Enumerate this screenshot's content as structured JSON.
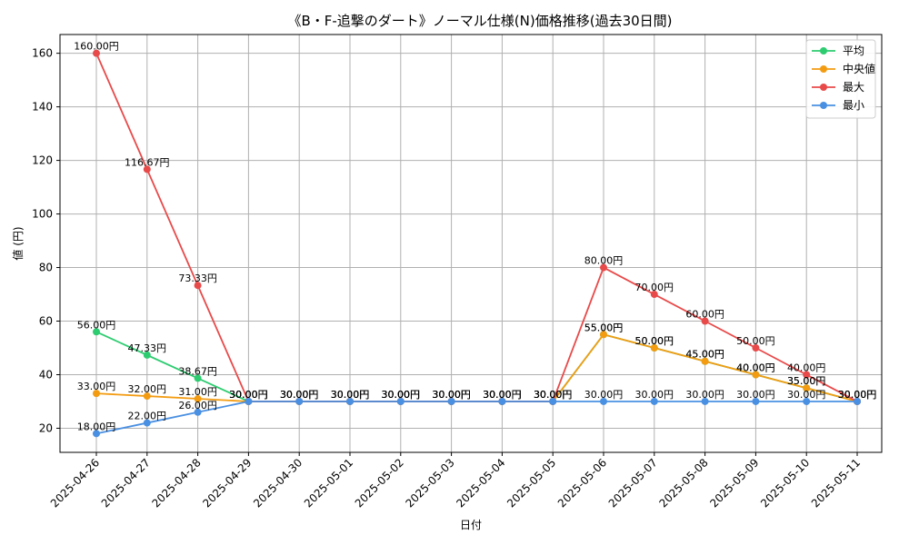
{
  "chart_data": {
    "type": "line",
    "title": "《B・F-追撃のダート》ノーマル仕様(N)価格推移(過去30日間)",
    "xlabel": "日付",
    "ylabel": "値 (円)",
    "ylim": [
      11,
      167
    ],
    "yticks": [
      20,
      40,
      60,
      80,
      100,
      120,
      140,
      160
    ],
    "grid": true,
    "legend_position": "top-right",
    "categories": [
      "2025-04-26",
      "2025-04-27",
      "2025-04-28",
      "2025-04-29",
      "2025-04-30",
      "2025-05-01",
      "2025-05-02",
      "2025-05-03",
      "2025-05-04",
      "2025-05-05",
      "2025-05-06",
      "2025-05-07",
      "2025-05-08",
      "2025-05-09",
      "2025-05-10",
      "2025-05-11"
    ],
    "series": [
      {
        "name": "平均",
        "color": "#2ecc71",
        "values": [
          56,
          47.33,
          38.67,
          30,
          30,
          30,
          30,
          30,
          30,
          30,
          55,
          50,
          45,
          40,
          35,
          30
        ],
        "labels": [
          "56.00円",
          "47.33円",
          "38.67円",
          "30.00円",
          "30.00円",
          "30.00円",
          "30.00円",
          "30.00円",
          "30.00円",
          "30.00円",
          "55.00円",
          "50.00円",
          "45.00円",
          "40.00円",
          "35.00円",
          "30.00円"
        ]
      },
      {
        "name": "中央値",
        "color": "#f39c12",
        "values": [
          33,
          32,
          31,
          30,
          30,
          30,
          30,
          30,
          30,
          30,
          55,
          50,
          45,
          40,
          35,
          30
        ],
        "labels": [
          "33.00円",
          "32.00円",
          "31.00円",
          "30.00円",
          "30.00円",
          "30.00円",
          "30.00円",
          "30.00円",
          "30.00円",
          "30.00円",
          "55.00円",
          "50.00円",
          "45.00円",
          "40.00円",
          "35.00円",
          "30.00円"
        ]
      },
      {
        "name": "最大",
        "color": "#e84a4a",
        "values": [
          160,
          116.67,
          73.33,
          30,
          30,
          30,
          30,
          30,
          30,
          30,
          80,
          70,
          60,
          50,
          40,
          30
        ],
        "labels": [
          "160.00円",
          "116.67円",
          "73.33円",
          "30.00円",
          "30.00円",
          "30.00円",
          "30.00円",
          "30.00円",
          "30.00円",
          "30.00円",
          "80.00円",
          "70.00円",
          "60.00円",
          "50.00円",
          "40.00円",
          "30.00円"
        ]
      },
      {
        "name": "最小",
        "color": "#4a90e2",
        "values": [
          18,
          22,
          26,
          30,
          30,
          30,
          30,
          30,
          30,
          30,
          30,
          30,
          30,
          30,
          30,
          30
        ],
        "labels": [
          "18.00円",
          "22.00円",
          "26.00円",
          "30.00円",
          "30.00円",
          "30.00円",
          "30.00円",
          "30.00円",
          "30.00円",
          "30.00円",
          "30.00円",
          "30.00円",
          "30.00円",
          "30.00円",
          "30.00円",
          "30.00円"
        ]
      }
    ]
  }
}
